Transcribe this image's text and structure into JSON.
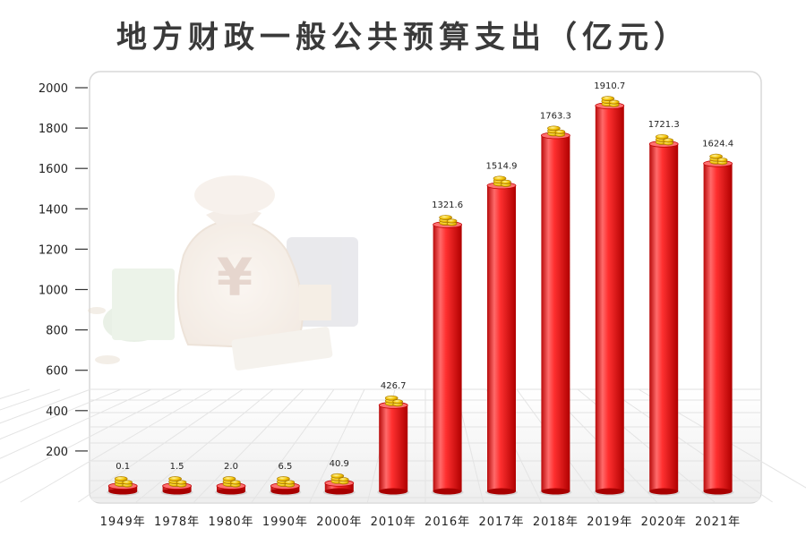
{
  "title": "地方财政一般公共预算支出（亿元）",
  "chart_data": {
    "type": "bar",
    "title": "地方财政一般公共预算支出（亿元）",
    "categories": [
      "1949年",
      "1978年",
      "1980年",
      "1990年",
      "2000年",
      "2010年",
      "2016年",
      "2017年",
      "2018年",
      "2019年",
      "2020年",
      "2021年"
    ],
    "values": [
      0.1,
      1.5,
      2.0,
      6.5,
      40.9,
      426.7,
      1321.6,
      1514.9,
      1763.3,
      1910.7,
      1721.3,
      1624.4
    ],
    "data_labels": [
      "0.1",
      "1.5",
      "2.0",
      "6.5",
      "40.9",
      "426.7",
      "1321.6",
      "1514.9",
      "1763.3",
      "1910.7",
      "1721.3",
      "1624.4"
    ],
    "y_ticks": [
      200,
      400,
      600,
      800,
      1000,
      1200,
      1400,
      1600,
      1800,
      2000
    ],
    "ylim": [
      0,
      2000
    ],
    "grid": false,
    "legend": "none",
    "bar_color": "#e02020",
    "coin_color": "#e0a800"
  }
}
